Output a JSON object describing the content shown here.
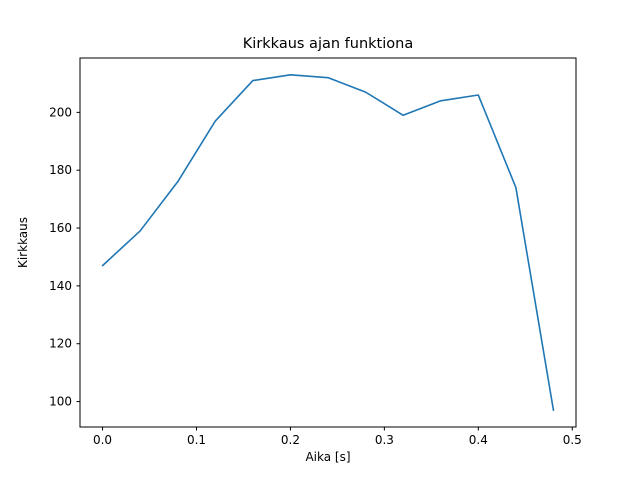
{
  "figure": {
    "background": "#ffffff"
  },
  "chart_data": {
    "type": "line",
    "title": "Kirkkaus ajan funktiona",
    "xlabel": "Aika [s]",
    "ylabel": "Kirkkaus",
    "x": [
      0.0,
      0.04,
      0.08,
      0.12,
      0.16,
      0.2,
      0.24,
      0.28,
      0.32,
      0.36,
      0.4,
      0.44,
      0.48
    ],
    "y": [
      147,
      159,
      176,
      197,
      211,
      213,
      212,
      207,
      199,
      204,
      206,
      174,
      97
    ],
    "xticks": [
      0.0,
      0.1,
      0.2,
      0.3,
      0.4,
      0.5
    ],
    "xtick_labels": [
      "0.0",
      "0.1",
      "0.2",
      "0.3",
      "0.4",
      "0.5"
    ],
    "yticks": [
      100,
      120,
      140,
      160,
      180,
      200
    ],
    "ytick_labels": [
      "100",
      "120",
      "140",
      "160",
      "180",
      "200"
    ],
    "xlim": [
      -0.024,
      0.504
    ],
    "ylim": [
      91.2,
      218.8
    ],
    "line_color": "#1f77b4",
    "grid": false,
    "legend": null
  }
}
